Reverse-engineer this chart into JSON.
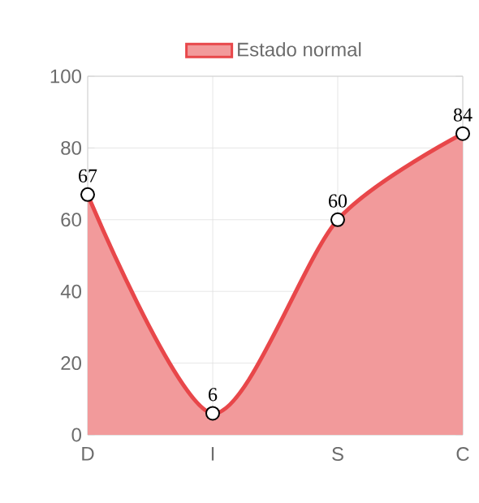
{
  "chart_data": {
    "type": "area",
    "categories": [
      "D",
      "I",
      "S",
      "C"
    ],
    "series": [
      {
        "name": "Estado normal",
        "color": "#e8474a",
        "values": [
          67,
          6,
          60,
          84
        ]
      }
    ],
    "ylim": [
      0,
      100
    ],
    "yticks": [
      0,
      20,
      40,
      60,
      80,
      100
    ],
    "grid": true,
    "legend": "top",
    "marker": "circle",
    "data_labels": true
  }
}
